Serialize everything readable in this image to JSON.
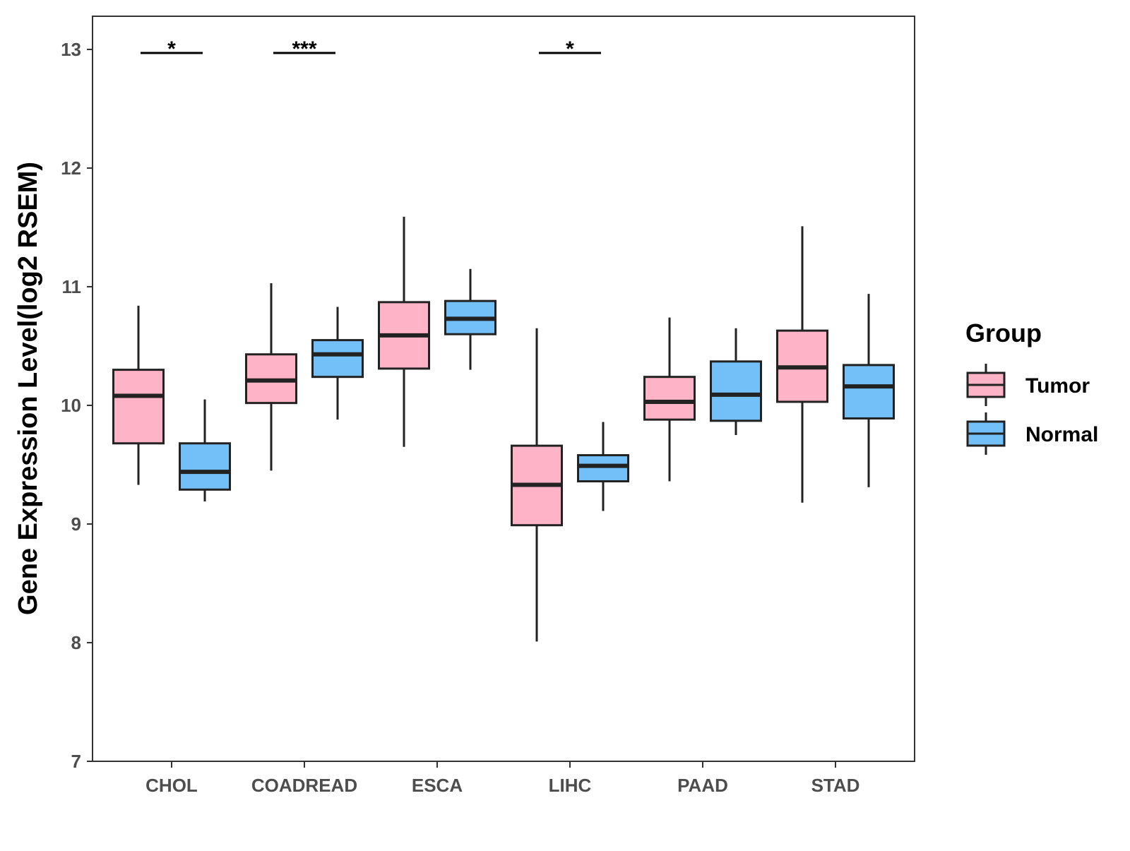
{
  "chart_data": {
    "type": "boxplot",
    "categories": [
      "CHOL",
      "COADREAD",
      "ESCA",
      "LIHC",
      "PAAD",
      "STAD"
    ],
    "ylabel": "Gene Expression Level(log2 RSEM)",
    "xlabel": "",
    "ylim": [
      7,
      13.3
    ],
    "yticks": [
      7,
      8,
      9,
      10,
      11,
      12,
      13
    ],
    "grid": false,
    "legend": {
      "title": "Group",
      "position": "right",
      "items": [
        {
          "name": "Tumor",
          "color": "#FFB3C6"
        },
        {
          "name": "Normal",
          "color": "#73BFF8"
        }
      ]
    },
    "series": [
      {
        "name": "Tumor",
        "color": "#FFB3C6",
        "boxes": [
          {
            "category": "CHOL",
            "whisker_low": 9.33,
            "q1": 9.68,
            "median": 10.08,
            "q3": 10.3,
            "whisker_high": 10.84
          },
          {
            "category": "COADREAD",
            "whisker_low": 9.45,
            "q1": 10.02,
            "median": 10.21,
            "q3": 10.43,
            "whisker_high": 11.03
          },
          {
            "category": "ESCA",
            "whisker_low": 9.65,
            "q1": 10.31,
            "median": 10.59,
            "q3": 10.87,
            "whisker_high": 11.59
          },
          {
            "category": "LIHC",
            "whisker_low": 8.01,
            "q1": 8.99,
            "median": 9.33,
            "q3": 9.66,
            "whisker_high": 10.65
          },
          {
            "category": "PAAD",
            "whisker_low": 9.36,
            "q1": 9.88,
            "median": 10.03,
            "q3": 10.24,
            "whisker_high": 10.74
          },
          {
            "category": "STAD",
            "whisker_low": 9.18,
            "q1": 10.03,
            "median": 10.32,
            "q3": 10.63,
            "whisker_high": 11.51
          }
        ]
      },
      {
        "name": "Normal",
        "color": "#73BFF8",
        "boxes": [
          {
            "category": "CHOL",
            "whisker_low": 9.19,
            "q1": 9.29,
            "median": 9.44,
            "q3": 9.68,
            "whisker_high": 10.05
          },
          {
            "category": "COADREAD",
            "whisker_low": 9.88,
            "q1": 10.24,
            "median": 10.43,
            "q3": 10.55,
            "whisker_high": 10.83
          },
          {
            "category": "ESCA",
            "whisker_low": 10.3,
            "q1": 10.6,
            "median": 10.73,
            "q3": 10.88,
            "whisker_high": 11.15
          },
          {
            "category": "LIHC",
            "whisker_low": 9.11,
            "q1": 9.36,
            "median": 9.49,
            "q3": 9.58,
            "whisker_high": 9.86
          },
          {
            "category": "PAAD",
            "whisker_low": 9.75,
            "q1": 9.87,
            "median": 10.09,
            "q3": 10.37,
            "whisker_high": 10.65
          },
          {
            "category": "STAD",
            "whisker_low": 9.31,
            "q1": 9.89,
            "median": 10.16,
            "q3": 10.34,
            "whisker_high": 10.94
          }
        ]
      }
    ],
    "annotations": [
      {
        "category": "CHOL",
        "label": "*",
        "y": 12.97
      },
      {
        "category": "COADREAD",
        "label": "***",
        "y": 12.97
      },
      {
        "category": "LIHC",
        "label": "*",
        "y": 12.97
      }
    ]
  }
}
